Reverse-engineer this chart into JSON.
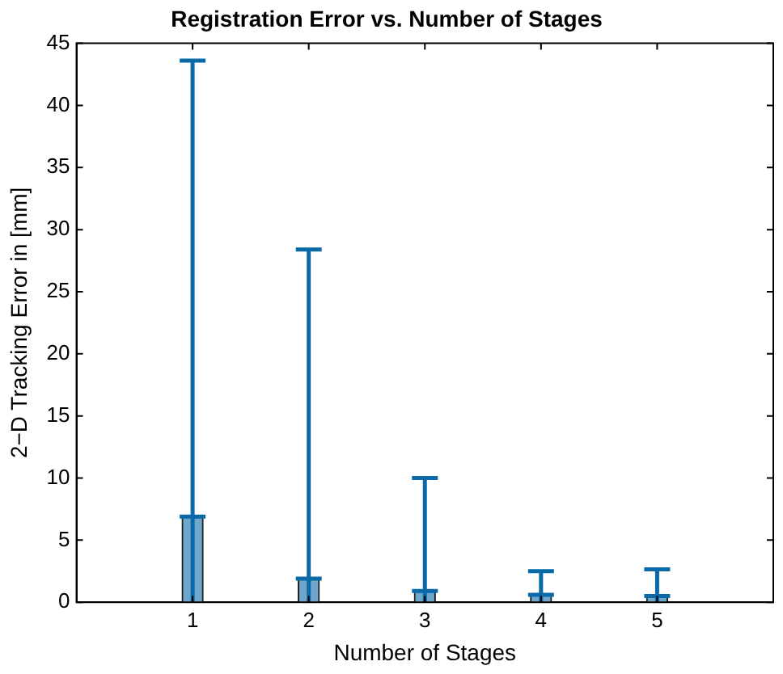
{
  "chart_data": {
    "type": "bar",
    "title": "Registration Error vs. Number of Stages",
    "xlabel": "Number of Stages",
    "ylabel": "2−D Tracking Error in [mm]",
    "x": [
      1,
      2,
      3,
      4,
      5
    ],
    "values": [
      6.9,
      1.9,
      0.9,
      0.6,
      0.5
    ],
    "errors": [
      [
        0,
        43.6
      ],
      [
        0,
        28.4
      ],
      [
        0,
        10.0
      ],
      [
        0,
        2.5
      ],
      [
        0,
        2.65
      ]
    ],
    "color": "#6fa6cb",
    "xlim": [
      0,
      6
    ],
    "xticks": [
      1,
      2,
      3,
      4,
      5
    ],
    "ylim": [
      0,
      45
    ],
    "yticks": [
      0,
      5,
      10,
      15,
      20,
      25,
      30,
      35,
      40,
      45
    ],
    "grid": false,
    "legend": false
  }
}
